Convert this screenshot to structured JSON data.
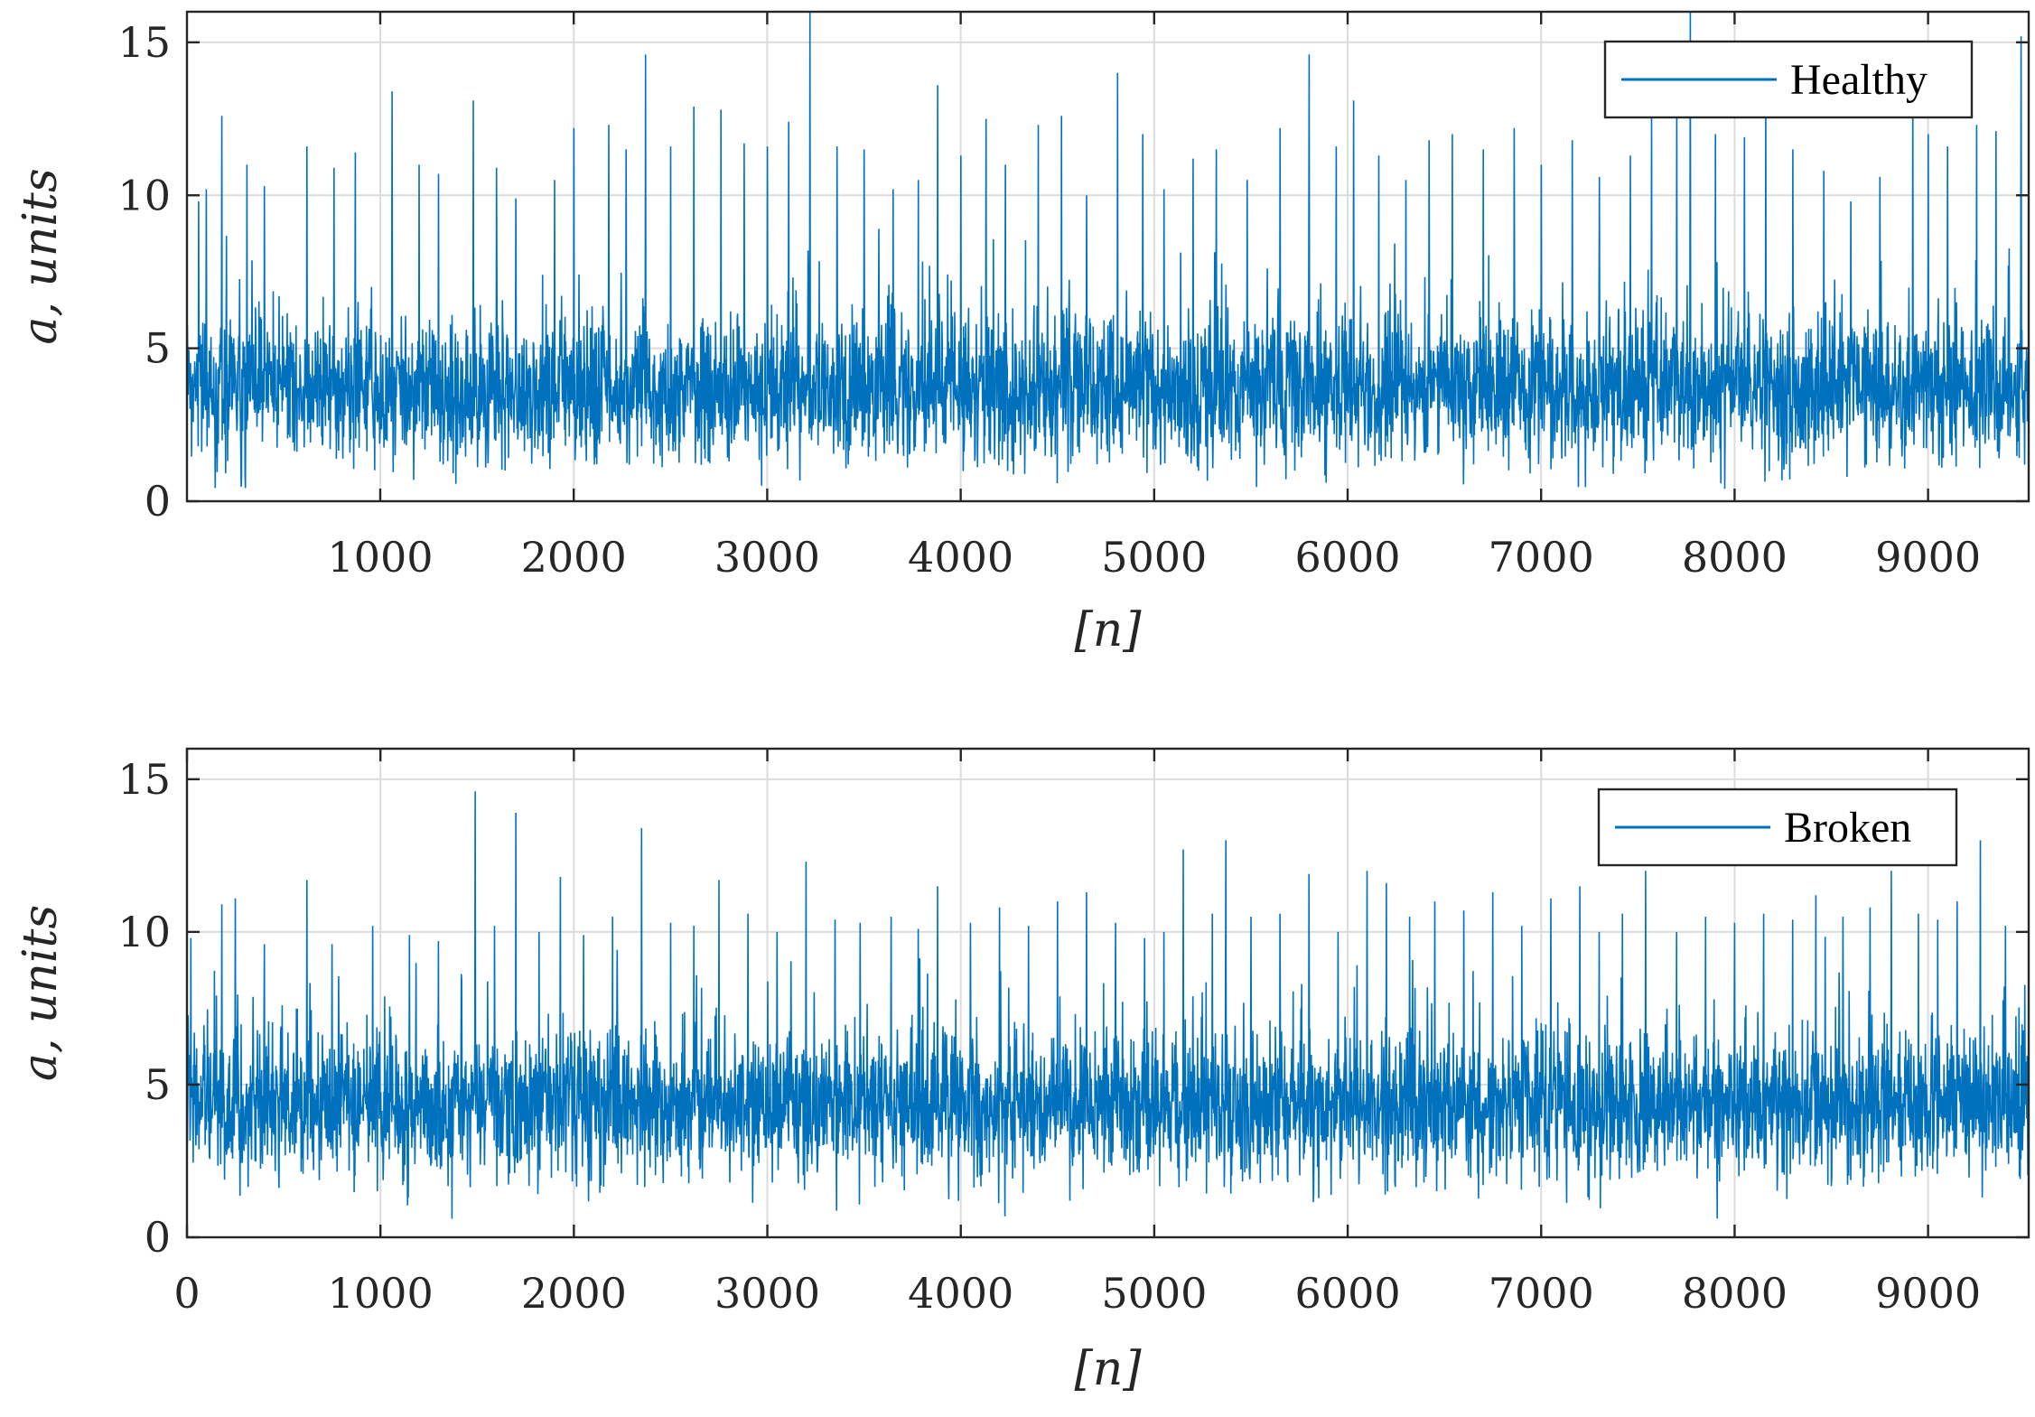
{
  "chart_data": [
    {
      "type": "line",
      "legend": "Healthy",
      "legend_position": "top-right",
      "grid": true,
      "xlabel": "[n]",
      "ylabel": "a, units",
      "xlim": [
        1,
        9520
      ],
      "ylim": [
        0,
        16
      ],
      "xticks": [
        "1000",
        "2000",
        "3000",
        "4000",
        "5000",
        "6000",
        "7000",
        "8000",
        "9000"
      ],
      "yticks": [
        "0",
        "5",
        "10",
        "15"
      ],
      "line_color": "#0072BD",
      "n_samples": 9520,
      "stats": {
        "baseline": 3.6,
        "min": 0.3,
        "max": 16,
        "typical_upper": 8.0
      },
      "series": [
        {
          "name": "Healthy",
          "spikes": [
            {
              "x": 60,
              "y": 9.8
            },
            {
              "x": 100,
              "y": 10.2
            },
            {
              "x": 180,
              "y": 12.6
            },
            {
              "x": 310,
              "y": 11.0
            },
            {
              "x": 400,
              "y": 10.3
            },
            {
              "x": 620,
              "y": 11.6
            },
            {
              "x": 760,
              "y": 10.9
            },
            {
              "x": 870,
              "y": 11.4
            },
            {
              "x": 1060,
              "y": 13.4
            },
            {
              "x": 1200,
              "y": 11.0
            },
            {
              "x": 1300,
              "y": 10.7
            },
            {
              "x": 1480,
              "y": 13.1
            },
            {
              "x": 1600,
              "y": 10.9
            },
            {
              "x": 1700,
              "y": 9.9
            },
            {
              "x": 1900,
              "y": 10.5
            },
            {
              "x": 2000,
              "y": 12.2
            },
            {
              "x": 2180,
              "y": 12.3
            },
            {
              "x": 2270,
              "y": 11.5
            },
            {
              "x": 2370,
              "y": 14.6
            },
            {
              "x": 2500,
              "y": 11.6
            },
            {
              "x": 2620,
              "y": 12.9
            },
            {
              "x": 2760,
              "y": 12.8
            },
            {
              "x": 2880,
              "y": 11.7
            },
            {
              "x": 3000,
              "y": 11.6
            },
            {
              "x": 3110,
              "y": 12.4
            },
            {
              "x": 3220,
              "y": 16.0
            },
            {
              "x": 3360,
              "y": 11.6
            },
            {
              "x": 3500,
              "y": 11.5
            },
            {
              "x": 3650,
              "y": 10.2
            },
            {
              "x": 3780,
              "y": 10.5
            },
            {
              "x": 3880,
              "y": 13.6
            },
            {
              "x": 4000,
              "y": 11.3
            },
            {
              "x": 4130,
              "y": 12.5
            },
            {
              "x": 4230,
              "y": 11.0
            },
            {
              "x": 4400,
              "y": 12.3
            },
            {
              "x": 4520,
              "y": 12.6
            },
            {
              "x": 4650,
              "y": 10.0
            },
            {
              "x": 4810,
              "y": 14.0
            },
            {
              "x": 4940,
              "y": 12.0
            },
            {
              "x": 5050,
              "y": 10.2
            },
            {
              "x": 5200,
              "y": 11.2
            },
            {
              "x": 5320,
              "y": 11.5
            },
            {
              "x": 5480,
              "y": 10.5
            },
            {
              "x": 5650,
              "y": 12.2
            },
            {
              "x": 5800,
              "y": 14.6
            },
            {
              "x": 5940,
              "y": 11.6
            },
            {
              "x": 6030,
              "y": 13.1
            },
            {
              "x": 6160,
              "y": 11.3
            },
            {
              "x": 6300,
              "y": 10.5
            },
            {
              "x": 6420,
              "y": 11.8
            },
            {
              "x": 6540,
              "y": 12.0
            },
            {
              "x": 6700,
              "y": 11.5
            },
            {
              "x": 6860,
              "y": 12.2
            },
            {
              "x": 7000,
              "y": 11.0
            },
            {
              "x": 7160,
              "y": 11.8
            },
            {
              "x": 7300,
              "y": 10.6
            },
            {
              "x": 7460,
              "y": 11.3
            },
            {
              "x": 7570,
              "y": 12.6
            },
            {
              "x": 7700,
              "y": 12.9
            },
            {
              "x": 7770,
              "y": 16.0
            },
            {
              "x": 7900,
              "y": 12.0
            },
            {
              "x": 8050,
              "y": 11.9
            },
            {
              "x": 8160,
              "y": 13.4
            },
            {
              "x": 8300,
              "y": 11.5
            },
            {
              "x": 8460,
              "y": 10.8
            },
            {
              "x": 8600,
              "y": 9.8
            },
            {
              "x": 8750,
              "y": 10.6
            },
            {
              "x": 8920,
              "y": 13.6
            },
            {
              "x": 9000,
              "y": 12.0
            },
            {
              "x": 9100,
              "y": 11.6
            },
            {
              "x": 9250,
              "y": 12.3
            },
            {
              "x": 9350,
              "y": 12.1
            },
            {
              "x": 9480,
              "y": 15.2
            }
          ]
        }
      ]
    },
    {
      "type": "line",
      "legend": "Broken",
      "legend_position": "top-right",
      "grid": true,
      "xlabel": "[n]",
      "ylabel": "a, units",
      "xlim": [
        0,
        9520
      ],
      "ylim": [
        0,
        16
      ],
      "xticks": [
        "0",
        "1000",
        "2000",
        "3000",
        "4000",
        "5000",
        "6000",
        "7000",
        "8000",
        "9000"
      ],
      "yticks": [
        "0",
        "5",
        "10",
        "15"
      ],
      "line_color": "#0072BD",
      "n_samples": 9520,
      "stats": {
        "baseline": 4.3,
        "min": 0.6,
        "max": 14.6,
        "typical_upper": 8.5
      },
      "series": [
        {
          "name": "Broken",
          "spikes": [
            {
              "x": 20,
              "y": 9.8
            },
            {
              "x": 180,
              "y": 10.9
            },
            {
              "x": 250,
              "y": 11.1
            },
            {
              "x": 400,
              "y": 9.6
            },
            {
              "x": 620,
              "y": 11.7
            },
            {
              "x": 750,
              "y": 9.6
            },
            {
              "x": 960,
              "y": 10.2
            },
            {
              "x": 1150,
              "y": 9.9
            },
            {
              "x": 1300,
              "y": 9.7
            },
            {
              "x": 1490,
              "y": 14.6
            },
            {
              "x": 1590,
              "y": 10.2
            },
            {
              "x": 1700,
              "y": 13.9
            },
            {
              "x": 1820,
              "y": 10.0
            },
            {
              "x": 1930,
              "y": 11.8
            },
            {
              "x": 2050,
              "y": 9.9
            },
            {
              "x": 2200,
              "y": 10.5
            },
            {
              "x": 2350,
              "y": 13.4
            },
            {
              "x": 2500,
              "y": 10.3
            },
            {
              "x": 2620,
              "y": 10.2
            },
            {
              "x": 2750,
              "y": 11.7
            },
            {
              "x": 2900,
              "y": 10.6
            },
            {
              "x": 3050,
              "y": 10.0
            },
            {
              "x": 3200,
              "y": 12.3
            },
            {
              "x": 3350,
              "y": 10.4
            },
            {
              "x": 3480,
              "y": 10.3
            },
            {
              "x": 3640,
              "y": 10.5
            },
            {
              "x": 3780,
              "y": 10.1
            },
            {
              "x": 3880,
              "y": 11.5
            },
            {
              "x": 4050,
              "y": 10.3
            },
            {
              "x": 4200,
              "y": 10.8
            },
            {
              "x": 4350,
              "y": 10.2
            },
            {
              "x": 4500,
              "y": 11.0
            },
            {
              "x": 4650,
              "y": 11.3
            },
            {
              "x": 4800,
              "y": 10.3
            },
            {
              "x": 4950,
              "y": 9.8
            },
            {
              "x": 5050,
              "y": 10.0
            },
            {
              "x": 5150,
              "y": 12.7
            },
            {
              "x": 5300,
              "y": 10.6
            },
            {
              "x": 5370,
              "y": 13.0
            },
            {
              "x": 5500,
              "y": 10.5
            },
            {
              "x": 5650,
              "y": 10.6
            },
            {
              "x": 5800,
              "y": 11.9
            },
            {
              "x": 5950,
              "y": 10.0
            },
            {
              "x": 6100,
              "y": 12.0
            },
            {
              "x": 6200,
              "y": 11.6
            },
            {
              "x": 6320,
              "y": 10.5
            },
            {
              "x": 6450,
              "y": 11.0
            },
            {
              "x": 6600,
              "y": 10.7
            },
            {
              "x": 6750,
              "y": 11.3
            },
            {
              "x": 6900,
              "y": 10.2
            },
            {
              "x": 7050,
              "y": 11.1
            },
            {
              "x": 7200,
              "y": 11.5
            },
            {
              "x": 7300,
              "y": 10.0
            },
            {
              "x": 7420,
              "y": 10.6
            },
            {
              "x": 7540,
              "y": 12.0
            },
            {
              "x": 7700,
              "y": 10.0
            },
            {
              "x": 7850,
              "y": 10.5
            },
            {
              "x": 8000,
              "y": 10.3
            },
            {
              "x": 8150,
              "y": 10.6
            },
            {
              "x": 8300,
              "y": 10.4
            },
            {
              "x": 8420,
              "y": 11.2
            },
            {
              "x": 8560,
              "y": 10.5
            },
            {
              "x": 8700,
              "y": 10.8
            },
            {
              "x": 8810,
              "y": 12.0
            },
            {
              "x": 8950,
              "y": 10.6
            },
            {
              "x": 9050,
              "y": 10.4
            },
            {
              "x": 9150,
              "y": 11.0
            },
            {
              "x": 9270,
              "y": 13.0
            },
            {
              "x": 9400,
              "y": 10.2
            }
          ]
        }
      ]
    }
  ]
}
